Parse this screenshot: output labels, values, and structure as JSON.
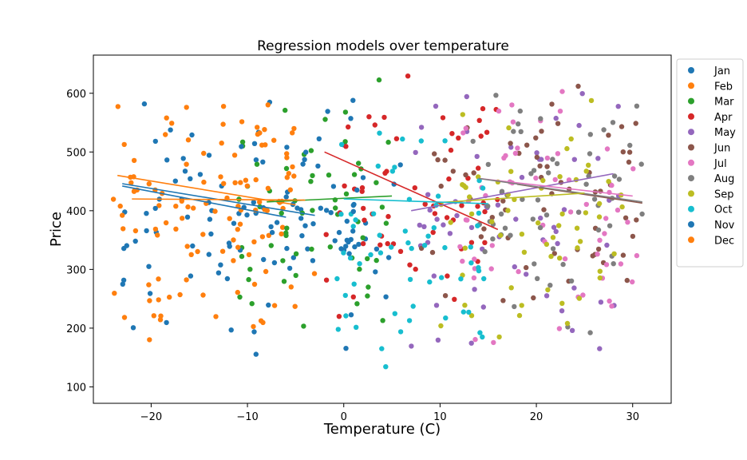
{
  "chart_data": {
    "type": "scatter",
    "title": "Regression models over temperature",
    "xlabel": "Temperature (C)",
    "ylabel": "Price",
    "xlim": [
      -26,
      34
    ],
    "ylim": [
      72,
      665
    ],
    "xticks": [
      -20,
      -10,
      0,
      10,
      20,
      30
    ],
    "yticks": [
      100,
      200,
      300,
      400,
      500,
      600
    ],
    "grid": false,
    "legend_position": "outside-right",
    "series": [
      {
        "name": "Jan",
        "color": "#1f77b4",
        "temp_range": [
          -23,
          6
        ],
        "price_range": [
          140,
          640
        ],
        "regression": {
          "x": [
            -23,
            -3
          ],
          "y": [
            446,
            392
          ]
        }
      },
      {
        "name": "Feb",
        "color": "#ff7f0e",
        "temp_range": [
          -24,
          -5
        ],
        "price_range": [
          165,
          635
        ],
        "regression": {
          "x": [
            -23.5,
            -5
          ],
          "y": [
            460,
            410
          ]
        }
      },
      {
        "name": "Mar",
        "color": "#2ca02c",
        "temp_range": [
          -11,
          5
        ],
        "price_range": [
          175,
          640
        ],
        "regression": {
          "x": [
            -8,
            5
          ],
          "y": [
            415,
            425
          ]
        }
      },
      {
        "name": "Apr",
        "color": "#d62728",
        "temp_range": [
          -2,
          16
        ],
        "price_range": [
          170,
          640
        ],
        "regression": {
          "x": [
            -2,
            16
          ],
          "y": [
            500,
            368
          ]
        }
      },
      {
        "name": "May",
        "color": "#9467bd",
        "temp_range": [
          7,
          30
        ],
        "price_range": [
          150,
          650
        ],
        "regression": {
          "x": [
            7,
            28
          ],
          "y": [
            400,
            463
          ]
        }
      },
      {
        "name": "Jun",
        "color": "#8c564b",
        "temp_range": [
          8,
          31
        ],
        "price_range": [
          200,
          650
        ],
        "regression": {
          "x": [
            18,
            31
          ],
          "y": [
            445,
            413
          ]
        }
      },
      {
        "name": "Jul",
        "color": "#e377c2",
        "temp_range": [
          12,
          31
        ],
        "price_range": [
          150,
          650
        ],
        "regression": {
          "x": [
            14,
            30
          ],
          "y": [
            455,
            425
          ]
        }
      },
      {
        "name": "Aug",
        "color": "#7f7f7f",
        "temp_range": [
          13,
          31
        ],
        "price_range": [
          155,
          650
        ],
        "regression": {
          "x": [
            14,
            31
          ],
          "y": [
            455,
            415
          ]
        }
      },
      {
        "name": "Sep",
        "color": "#bcbd22",
        "temp_range": [
          10,
          29
        ],
        "price_range": [
          160,
          610
        ],
        "regression": {
          "x": [
            10,
            25
          ],
          "y": [
            414,
            430
          ]
        }
      },
      {
        "name": "Oct",
        "color": "#17becf",
        "temp_range": [
          -1,
          15
        ],
        "price_range": [
          100,
          580
        ],
        "regression": {
          "x": [
            0,
            15
          ],
          "y": [
            420,
            412
          ]
        }
      },
      {
        "name": "Nov",
        "color": "#1f77b4",
        "temp_range": [
          -23,
          4
        ],
        "price_range": [
          140,
          620
        ],
        "regression": {
          "x": [
            -23,
            -6
          ],
          "y": [
            442,
            389
          ]
        }
      },
      {
        "name": "Dec",
        "color": "#ff7f0e",
        "temp_range": [
          -24,
          -3
        ],
        "price_range": [
          165,
          635
        ],
        "regression": {
          "x": [
            -22,
            -4
          ],
          "y": [
            420,
            418
          ]
        }
      }
    ]
  }
}
